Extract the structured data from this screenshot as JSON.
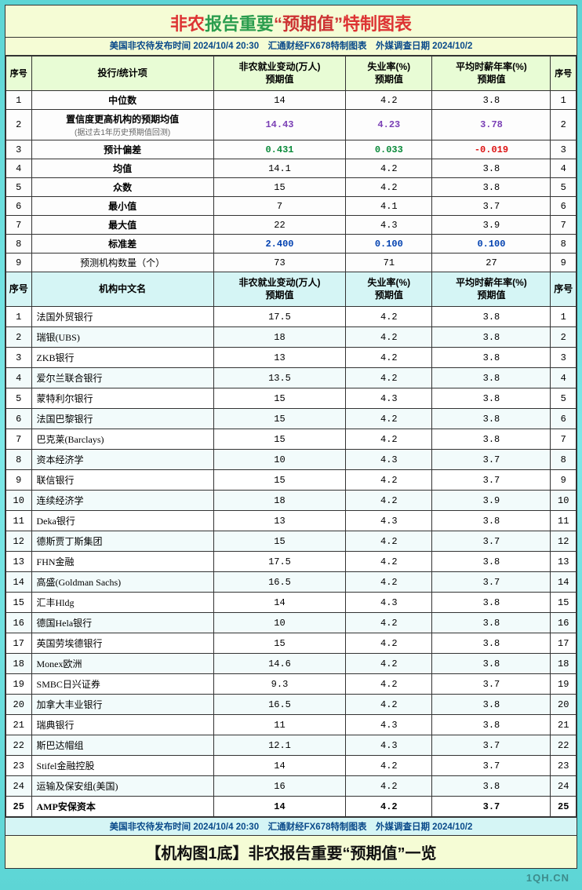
{
  "title": {
    "p1": "非农",
    "p2": "报告重要",
    "p3": "“预期值”",
    "p4": "特制图表"
  },
  "subtitle": "美国非农待发布时间 2024/10/4 20:30　汇通财经FX678特制图表　外媒调查日期 2024/10/2",
  "headers1": {
    "idx": "序号",
    "name": "投行/统计项",
    "c1a": "非农就业变动(万人)",
    "c1b": "预期值",
    "c2a": "失业率(%)",
    "c2b": "预期值",
    "c3a": "平均时薪年率(%)",
    "c3b": "预期值",
    "idx2": "序号"
  },
  "stats": [
    {
      "n": "1",
      "name": "中位数",
      "v1": "14",
      "v2": "4.2",
      "v3": "3.8",
      "cls": "",
      "ncls": "name-cell"
    },
    {
      "n": "2",
      "name": "置信度更高机构的预期均值",
      "note": "(据过去1年历史预期值回测)",
      "v1": "14.43",
      "v2": "4.23",
      "v3": "3.78",
      "cls": "purple-b",
      "ncls": "name-cell"
    },
    {
      "n": "3",
      "name": "预计偏差",
      "v1": "0.431",
      "v2": "0.033",
      "v3": "-0.019",
      "cls": "green-b",
      "v3cls": "red-b",
      "ncls": "name-cell"
    },
    {
      "n": "4",
      "name": "均值",
      "v1": "14.1",
      "v2": "4.2",
      "v3": "3.8",
      "cls": "",
      "ncls": "name-cell"
    },
    {
      "n": "5",
      "name": "众数",
      "v1": "15",
      "v2": "4.2",
      "v3": "3.8",
      "cls": "",
      "ncls": "name-cell"
    },
    {
      "n": "6",
      "name": "最小值",
      "v1": "7",
      "v2": "4.1",
      "v3": "3.7",
      "cls": "",
      "ncls": "name-cell"
    },
    {
      "n": "7",
      "name": "最大值",
      "v1": "22",
      "v2": "4.3",
      "v3": "3.9",
      "cls": "",
      "ncls": "name-cell"
    },
    {
      "n": "8",
      "name": "标准差",
      "v1": "2.400",
      "v2": "0.100",
      "v3": "0.100",
      "cls": "blue-b",
      "ncls": "name-cell"
    },
    {
      "n": "9",
      "name": "预测机构数量（个）",
      "v1": "73",
      "v2": "71",
      "v3": "27",
      "cls": "",
      "ncls": ""
    }
  ],
  "headers2": {
    "idx": "序号",
    "name": "机构中文名",
    "c1a": "非农就业变动(万人)",
    "c1b": "预期值",
    "c2a": "失业率(%)",
    "c2b": "预期值",
    "c3a": "平均时薪年率(%)",
    "c3b": "预期值",
    "idx2": "序号"
  },
  "institutions": [
    {
      "n": "1",
      "name": "法国外贸银行",
      "v1": "17.5",
      "v2": "4.2",
      "v3": "3.8"
    },
    {
      "n": "2",
      "name": "瑞银(UBS)",
      "v1": "18",
      "v2": "4.2",
      "v3": "3.8"
    },
    {
      "n": "3",
      "name": "ZKB银行",
      "v1": "13",
      "v2": "4.2",
      "v3": "3.8"
    },
    {
      "n": "4",
      "name": "爱尔兰联合银行",
      "v1": "13.5",
      "v2": "4.2",
      "v3": "3.8"
    },
    {
      "n": "5",
      "name": "蒙特利尔银行",
      "v1": "15",
      "v2": "4.3",
      "v3": "3.8"
    },
    {
      "n": "6",
      "name": "法国巴黎银行",
      "v1": "15",
      "v2": "4.2",
      "v3": "3.8"
    },
    {
      "n": "7",
      "name": "巴克莱(Barclays)",
      "v1": "15",
      "v2": "4.2",
      "v3": "3.8"
    },
    {
      "n": "8",
      "name": "资本经济学",
      "v1": "10",
      "v2": "4.3",
      "v3": "3.7"
    },
    {
      "n": "9",
      "name": "联信银行",
      "v1": "15",
      "v2": "4.2",
      "v3": "3.7"
    },
    {
      "n": "10",
      "name": "连续经济学",
      "v1": "18",
      "v2": "4.2",
      "v3": "3.9"
    },
    {
      "n": "11",
      "name": "Deka银行",
      "v1": "13",
      "v2": "4.3",
      "v3": "3.8"
    },
    {
      "n": "12",
      "name": "德斯贾丁斯集团",
      "v1": "15",
      "v2": "4.2",
      "v3": "3.7"
    },
    {
      "n": "13",
      "name": "FHN金融",
      "v1": "17.5",
      "v2": "4.2",
      "v3": "3.8"
    },
    {
      "n": "14",
      "name": "高盛(Goldman Sachs)",
      "v1": "16.5",
      "v2": "4.2",
      "v3": "3.7"
    },
    {
      "n": "15",
      "name": "汇丰Hldg",
      "v1": "14",
      "v2": "4.3",
      "v3": "3.8"
    },
    {
      "n": "16",
      "name": "德国Hela银行",
      "v1": "10",
      "v2": "4.2",
      "v3": "3.8"
    },
    {
      "n": "17",
      "name": "英国劳埃德银行",
      "v1": "15",
      "v2": "4.2",
      "v3": "3.8"
    },
    {
      "n": "18",
      "name": "Monex欧洲",
      "v1": "14.6",
      "v2": "4.2",
      "v3": "3.8"
    },
    {
      "n": "19",
      "name": "SMBC日兴证券",
      "v1": "9.3",
      "v2": "4.2",
      "v3": "3.7"
    },
    {
      "n": "20",
      "name": "加拿大丰业银行",
      "v1": "16.5",
      "v2": "4.2",
      "v3": "3.8"
    },
    {
      "n": "21",
      "name": "瑞典银行",
      "v1": "11",
      "v2": "4.3",
      "v3": "3.8"
    },
    {
      "n": "22",
      "name": "斯巴达帽组",
      "v1": "12.1",
      "v2": "4.3",
      "v3": "3.7"
    },
    {
      "n": "23",
      "name": "Stifel金融控股",
      "v1": "14",
      "v2": "4.2",
      "v3": "3.7"
    },
    {
      "n": "24",
      "name": "运输及保安组(美国)",
      "v1": "16",
      "v2": "4.2",
      "v3": "3.8"
    },
    {
      "n": "25",
      "name": "AMP安保资本",
      "v1": "14",
      "v2": "4.2",
      "v3": "3.7",
      "bold": true
    }
  ],
  "footer_sub": "美国非农待发布时间 2024/10/4 20:30　汇通财经FX678特制图表　外媒调查日期 2024/10/2",
  "footer_title": "【机构图1底】非农报告重要“预期值”一览",
  "watermark": "1QH.CN"
}
